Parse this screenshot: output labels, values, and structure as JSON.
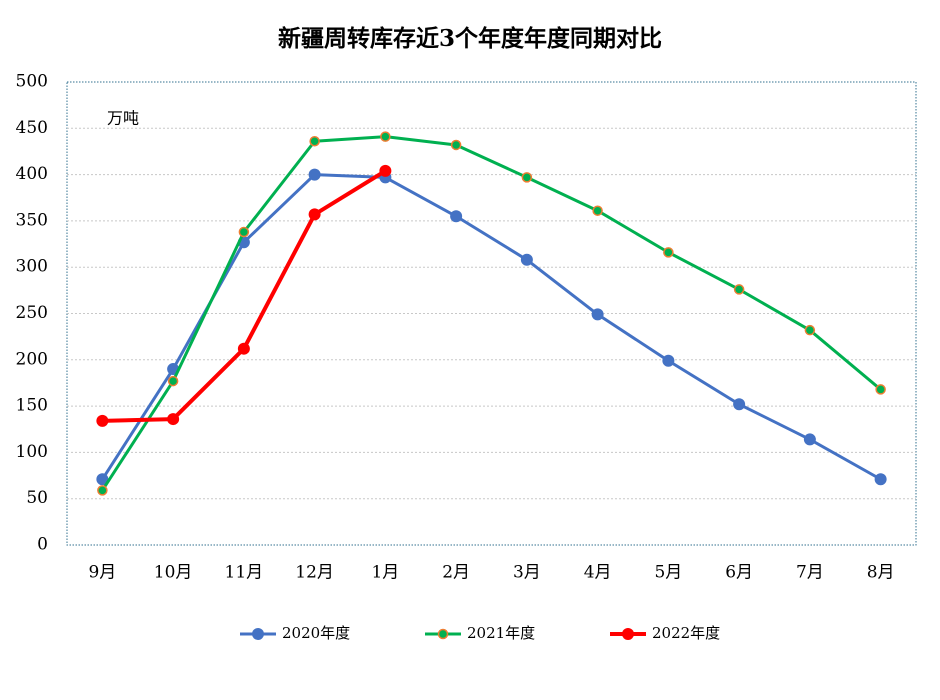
{
  "chart_data": {
    "type": "line",
    "title": "新疆周转库存近3个年度年度同期对比",
    "annotation": "万吨",
    "categories": [
      "9月",
      "10月",
      "11月",
      "12月",
      "1月",
      "2月",
      "3月",
      "4月",
      "5月",
      "6月",
      "7月",
      "8月"
    ],
    "series": [
      {
        "name": "2020年度",
        "color": "#4472c4",
        "values": [
          71,
          190,
          327,
          400,
          397,
          355,
          308,
          249,
          199,
          152,
          114,
          71
        ]
      },
      {
        "name": "2021年度",
        "color": "#00b050",
        "marker_edge": "#ed7d31",
        "values": [
          59,
          177,
          338,
          436,
          441,
          432,
          397,
          361,
          316,
          276,
          232,
          168
        ]
      },
      {
        "name": "2022年度",
        "color": "#ff0000",
        "values": [
          134,
          136,
          212,
          357,
          404,
          null,
          null,
          null,
          null,
          null,
          null,
          null
        ]
      }
    ],
    "ylim": [
      0,
      500
    ],
    "yticks": [
      0,
      50,
      100,
      150,
      200,
      250,
      300,
      350,
      400,
      450,
      500
    ],
    "grid": true,
    "legend": "bottom"
  }
}
